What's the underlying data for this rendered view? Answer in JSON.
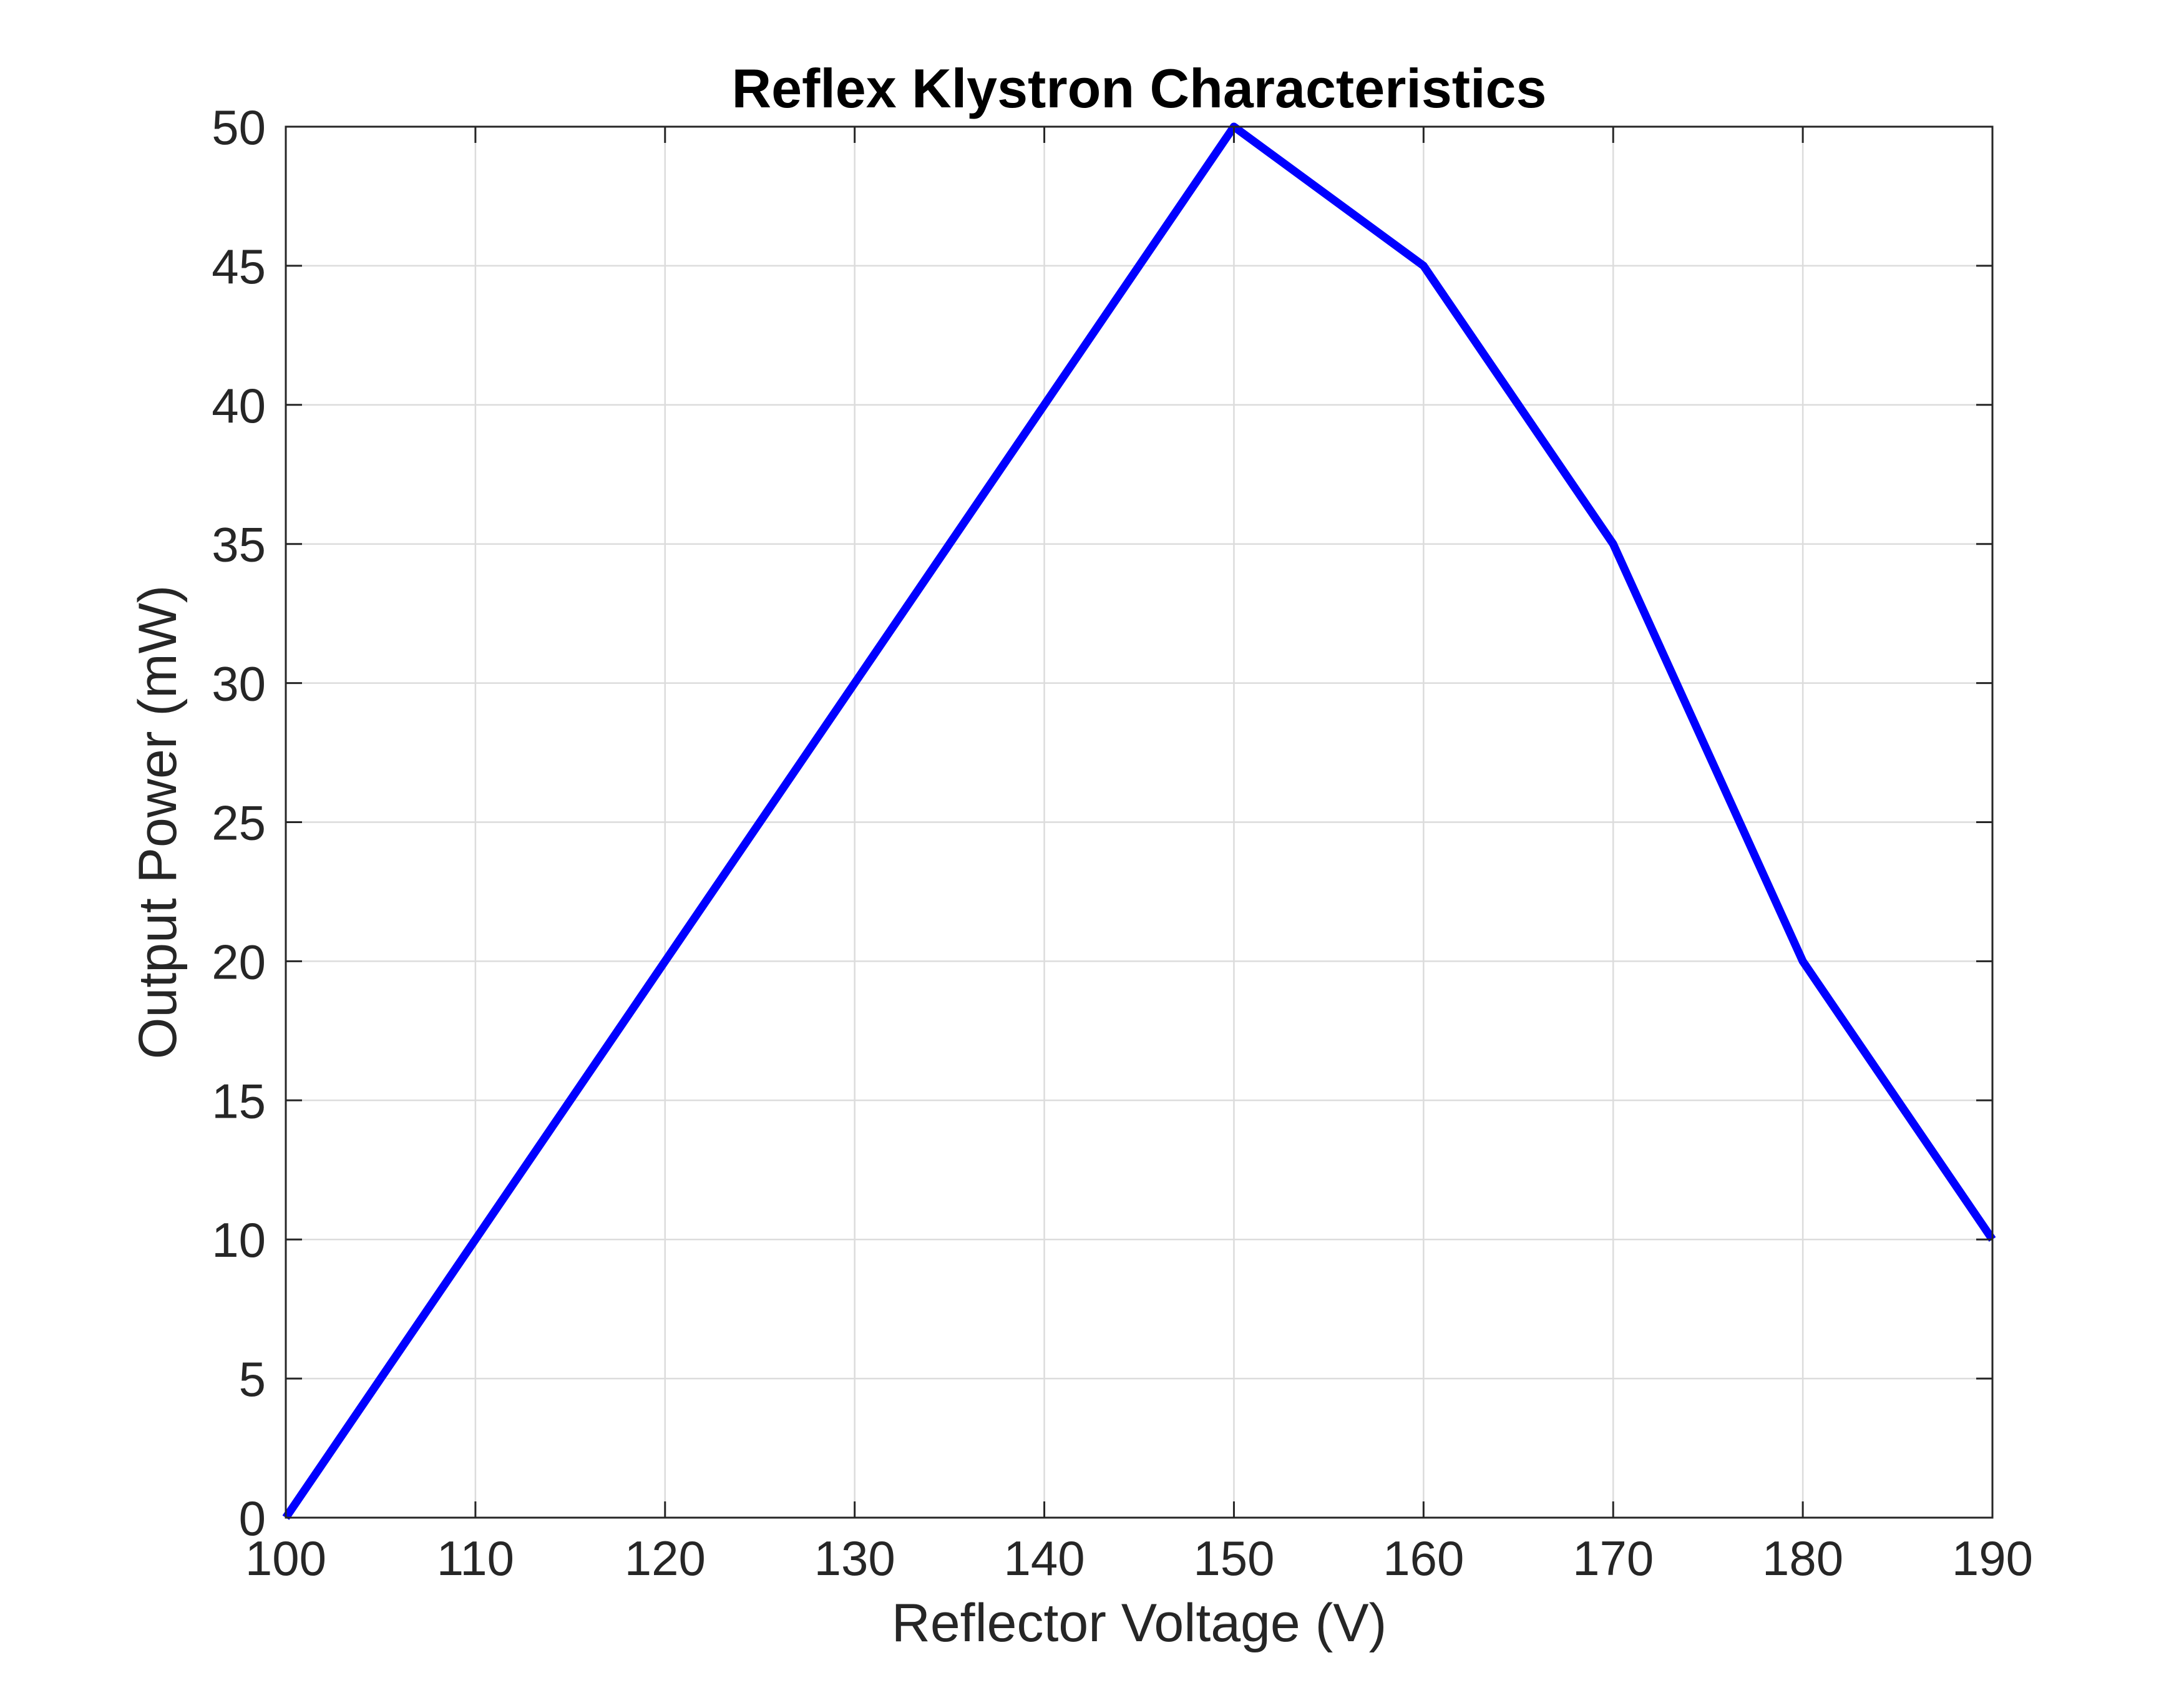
{
  "chart_data": {
    "type": "line",
    "title": "Reflex Klystron Characteristics",
    "xlabel": "Reflector Voltage (V)",
    "ylabel": "Output Power (mW)",
    "xlim": [
      100,
      190
    ],
    "ylim": [
      0,
      50
    ],
    "xticks": [
      100,
      110,
      120,
      130,
      140,
      150,
      160,
      170,
      180,
      190
    ],
    "yticks": [
      0,
      5,
      10,
      15,
      20,
      25,
      30,
      35,
      40,
      45,
      50
    ],
    "grid": true,
    "series": [
      {
        "x": [
          100,
          110,
          120,
          130,
          140,
          150,
          160,
          170,
          180,
          190
        ],
        "y": [
          0,
          10,
          20,
          30,
          40,
          50,
          45,
          35,
          20,
          10
        ],
        "color": "#0000ff"
      }
    ]
  }
}
